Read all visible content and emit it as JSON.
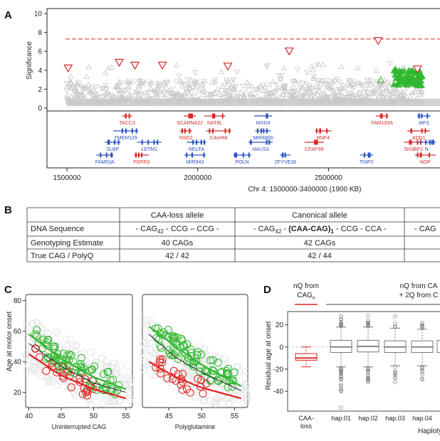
{
  "panel_a": {
    "letter": "A",
    "ylabel": "Significance",
    "xlabel": "Chr 4: 1500000-3400000 (1900 KB)",
    "colors": {
      "grey": "#c8c8c8",
      "red": "#d42a2a",
      "green": "#2fb82f",
      "blue": "#2a4fc0"
    },
    "significance_line": 7.3,
    "chart_data": {
      "type": "scatter",
      "ylim": [
        0,
        10
      ],
      "xlim": [
        1500000,
        2850000
      ],
      "yticks": [
        0,
        2,
        4,
        6,
        8,
        10
      ],
      "xticks": [
        1500000,
        2000000,
        2500000
      ],
      "xtick_labels": [
        "1500000",
        "2000000",
        "2500000"
      ],
      "red_points": [
        {
          "x": 1505000,
          "y": 4.2
        },
        {
          "x": 1700000,
          "y": 4.8
        },
        {
          "x": 1760000,
          "y": 4.5
        },
        {
          "x": 1865000,
          "y": 4.5
        },
        {
          "x": 2115000,
          "y": 4.4
        },
        {
          "x": 2350000,
          "y": 6.0
        },
        {
          "x": 2690000,
          "y": 7.1
        },
        {
          "x": 2840000,
          "y": 4.1
        }
      ]
    },
    "genes": [
      {
        "name": "TACC3",
        "x": 1730000,
        "row": 0,
        "color": "red"
      },
      {
        "name": "SCARNA22",
        "x": 1970000,
        "row": 0,
        "color": "red"
      },
      {
        "name": "NAT8L",
        "x": 2065000,
        "row": 0,
        "color": "red"
      },
      {
        "name": "MXD4",
        "x": 2250000,
        "row": 0,
        "color": "blue"
      },
      {
        "name": "FAM193A",
        "x": 2705000,
        "row": 0,
        "color": "red"
      },
      {
        "name": "MFS",
        "x": 2865000,
        "row": 0,
        "color": "blue"
      },
      {
        "name": "TMEM129",
        "x": 1725000,
        "row": 1,
        "color": "blue"
      },
      {
        "name": "NSD2",
        "x": 1955000,
        "row": 1,
        "color": "red"
      },
      {
        "name": "C4orf48",
        "x": 2080000,
        "row": 1,
        "color": "red"
      },
      {
        "name": "MIR4800",
        "x": 2250000,
        "row": 1,
        "color": "blue"
      },
      {
        "name": "RNF4",
        "x": 2480000,
        "row": 1,
        "color": "red"
      },
      {
        "name": "ADD1",
        "x": 2845000,
        "row": 1,
        "color": "red"
      },
      {
        "name": "SLBP",
        "x": 1675000,
        "row": 2,
        "color": "blue"
      },
      {
        "name": "LETM1",
        "x": 1815000,
        "row": 2,
        "color": "blue"
      },
      {
        "name": "NELFA",
        "x": 1995000,
        "row": 2,
        "color": "blue"
      },
      {
        "name": "HAUS3",
        "x": 2240000,
        "row": 2,
        "color": "blue"
      },
      {
        "name": "CFAP99",
        "x": 2445000,
        "row": 2,
        "color": "red"
      },
      {
        "name": "SH3BP2",
        "x": 2825000,
        "row": 2,
        "color": "red"
      },
      {
        "name": "N",
        "x": 2875000,
        "row": 2,
        "color": "blue"
      },
      {
        "name": "FAM53A",
        "x": 1645000,
        "row": 3,
        "color": "blue"
      },
      {
        "name": "FGFR3",
        "x": 1785000,
        "row": 3,
        "color": "red"
      },
      {
        "name": "MIR943",
        "x": 1990000,
        "row": 3,
        "color": "blue"
      },
      {
        "name": "POLN",
        "x": 2170000,
        "row": 3,
        "color": "blue"
      },
      {
        "name": "ZFYVE28",
        "x": 2335000,
        "row": 3,
        "color": "blue"
      },
      {
        "name": "TNIP2",
        "x": 2645000,
        "row": 3,
        "color": "blue"
      },
      {
        "name": "NOP",
        "x": 2870000,
        "row": 3,
        "color": "red"
      }
    ]
  },
  "panel_b": {
    "letter": "B",
    "columns": [
      "",
      "CAA-loss allele",
      "Canonical allele",
      ""
    ],
    "rows": [
      {
        "label": "DNA Sequence",
        "cells": [
          {
            "pre": "- CAG",
            "sub": "42",
            "mid": " - CCG – CCG -",
            "bold": "",
            "bsub": "",
            "post": ""
          },
          {
            "pre": "- CAG",
            "sub": "42",
            "mid": " - ",
            "bold": "(CAA-CAG)",
            "bsub": "1",
            "post": " - CCG - CCA -"
          },
          {
            "pre": "- CAG",
            "sub": "",
            "mid": "",
            "bold": "",
            "bsub": "",
            "post": ""
          }
        ]
      },
      {
        "label": "Genotyping Estimate",
        "cells": [
          {
            "pre": "40 CAGs"
          },
          {
            "pre": "42 CAGs"
          },
          {
            "pre": ""
          }
        ]
      },
      {
        "label": "True CAG / PolyQ",
        "cells": [
          {
            "pre": "42 / 42"
          },
          {
            "pre": "42 / 44"
          },
          {
            "pre": ""
          }
        ]
      }
    ]
  },
  "panel_c": {
    "letter": "C",
    "ylabel": "Age at motor onset",
    "colors": {
      "green": "#2fb82f",
      "red": "#e02020",
      "black": "#333333",
      "grey": "#e2e2e2"
    },
    "chart_data": [
      {
        "type": "scatter",
        "xlabel": "Uninterrupted CAG",
        "xlim": [
          39.5,
          56
        ],
        "ylim": [
          10,
          84
        ],
        "xticks": [
          40,
          45,
          50,
          55
        ],
        "yticks": [
          20,
          40,
          60,
          80
        ],
        "green_curve": [
          [
            40,
            58
          ],
          [
            45,
            42
          ],
          [
            50,
            30
          ],
          [
            55,
            22
          ]
        ],
        "black_curve": [
          [
            40,
            52
          ],
          [
            45,
            37
          ],
          [
            50,
            26
          ],
          [
            55,
            20
          ]
        ],
        "red_curve": [
          [
            40,
            45
          ],
          [
            45,
            31
          ],
          [
            50,
            22
          ],
          [
            55,
            16
          ]
        ]
      },
      {
        "type": "scatter",
        "xlabel": "Polyglutamine",
        "xlim": [
          41,
          57
        ],
        "ylim": [
          10,
          84
        ],
        "xticks": [
          45,
          50,
          55
        ],
        "yticks": [
          20,
          40,
          60,
          80
        ],
        "green_curve": [
          [
            42,
            63
          ],
          [
            46,
            50
          ],
          [
            50,
            38
          ],
          [
            56,
            24
          ]
        ],
        "black_curve": [
          [
            42,
            58
          ],
          [
            46,
            43
          ],
          [
            50,
            33
          ],
          [
            56,
            21
          ]
        ],
        "red_curve": [
          [
            42,
            40
          ],
          [
            46,
            30
          ],
          [
            50,
            23
          ],
          [
            56,
            16
          ]
        ]
      }
    ]
  },
  "panel_d": {
    "letter": "D",
    "ylabel": "Residual age at onset",
    "red_header": [
      "nQ from",
      "CAG"
    ],
    "red_header_sub": "n",
    "grey_header": [
      "nQ from CA",
      "+ 2Q from C"
    ],
    "xlabel": "Haploty",
    "chart_data": {
      "type": "box",
      "ylim": [
        -58,
        32
      ],
      "yticks": [
        -40,
        -20,
        0,
        20
      ],
      "categories": [
        "CAA-loss",
        "hap.01",
        "hap.02",
        "hap.03",
        "hap.04"
      ],
      "category_label_lines": [
        [
          "CAA-",
          "loss"
        ],
        [
          "hap.01"
        ],
        [
          "hap.02"
        ],
        [
          "hap.03"
        ],
        [
          "hap.04"
        ]
      ],
      "boxes": [
        {
          "median": -10,
          "q1": -12,
          "q3": -6,
          "lo": -18,
          "hi": 0,
          "color": "red"
        },
        {
          "median": 0,
          "q1": -5,
          "q3": 6,
          "lo": -18,
          "hi": 18,
          "color": "grey"
        },
        {
          "median": 0.5,
          "q1": -4.5,
          "q3": 6,
          "lo": -18,
          "hi": 18,
          "color": "grey"
        },
        {
          "median": 0,
          "q1": -5,
          "q3": 5.5,
          "lo": -17,
          "hi": 17,
          "color": "grey"
        },
        {
          "median": 0,
          "q1": -5,
          "q3": 5.5,
          "lo": -17,
          "hi": 16,
          "color": "grey"
        }
      ]
    }
  }
}
